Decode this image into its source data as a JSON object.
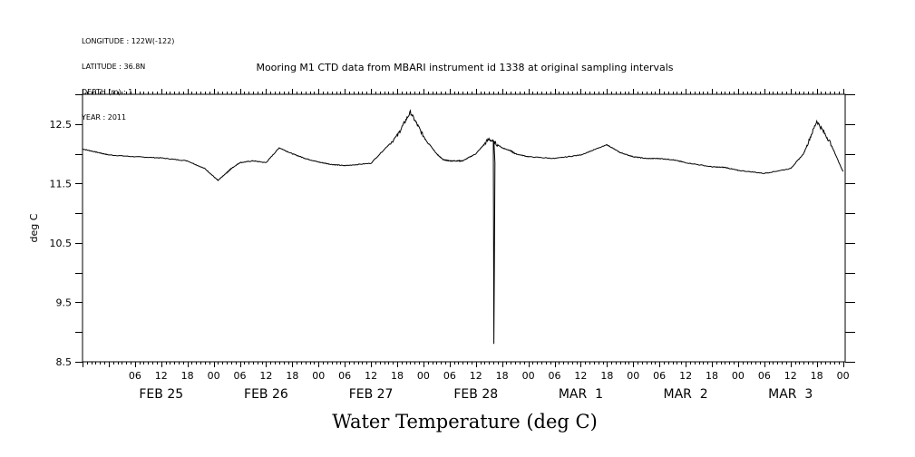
{
  "meta_lines": [
    "LONGITUDE : 122W(-122)",
    "LATITUDE : 36.8N",
    "DEPTH (m) : 1",
    "YEAR : 2011"
  ],
  "caption": "Water Temperature (deg C)",
  "colors": {
    "line": "#000000",
    "background": "#ffffff"
  },
  "chart_data": {
    "type": "line",
    "title": "Mooring M1 CTD data from MBARI instrument id 1338 at original sampling intervals",
    "xlabel": "",
    "ylabel": "deg C",
    "ylim": [
      8.5,
      13.0
    ],
    "xlim": [
      "2011-02-24T18:00",
      "2011-03-04T00:30"
    ],
    "y_ticks": [
      8.5,
      9.5,
      10.5,
      11.5,
      12.5
    ],
    "y_tick_labels": [
      "8.5",
      "9.5",
      "10.5",
      "11.5",
      "12.5"
    ],
    "hour_tick_labels": [
      "06",
      "12",
      "18",
      "00",
      "06",
      "12",
      "18",
      "00",
      "06",
      "12",
      "18",
      "00",
      "06",
      "12",
      "18",
      "00",
      "06",
      "12",
      "18",
      "00",
      "06",
      "12",
      "18",
      "00",
      "06",
      "12",
      "18",
      "00",
      "06",
      "12",
      "18",
      "00"
    ],
    "day_labels": [
      "FEB 25",
      "FEB 26",
      "FEB 27",
      "FEB 28",
      "MAR  1",
      "MAR  2",
      "MAR  3"
    ],
    "grid": false,
    "series": [
      {
        "x": [
          "2011-02-24T18:00",
          "2011-02-24T21:00",
          "2011-02-25T00:00",
          "2011-02-25T06:00",
          "2011-02-25T12:00",
          "2011-02-25T18:00",
          "2011-02-25T22:00",
          "2011-02-26T01:00",
          "2011-02-26T03:00",
          "2011-02-26T04:00",
          "2011-02-26T06:00",
          "2011-02-26T09:00",
          "2011-02-26T12:00",
          "2011-02-26T15:00",
          "2011-02-26T18:00",
          "2011-02-26T21:00",
          "2011-02-27T00:00",
          "2011-02-27T03:00",
          "2011-02-27T06:00",
          "2011-02-27T12:00",
          "2011-02-27T18:00",
          "2011-02-27T21:00",
          "2011-02-28T00:00",
          "2011-02-28T03:00",
          "2011-02-28T04:30",
          "2011-02-28T06:00",
          "2011-02-28T07:30",
          "2011-02-28T09:00",
          "2011-02-28T12:00",
          "2011-02-28T15:00",
          "2011-02-28T18:00",
          "2011-02-28T20:00",
          "2011-02-28T21:00",
          "2011-03-01T00:00",
          "2011-03-01T06:00",
          "2011-03-01T12:00",
          "2011-03-01T18:00",
          "2011-03-01T21:00",
          "2011-03-02T00:00",
          "2011-03-02T03:00",
          "2011-03-02T06:00",
          "2011-03-02T09:00",
          "2011-03-02T12:00",
          "2011-03-02T18:00",
          "2011-03-02T21:00",
          "2011-03-03T00:00",
          "2011-03-03T06:00",
          "2011-03-03T12:00",
          "2011-03-03T15:00",
          "2011-03-03T18:00",
          "2011-03-03T21:00",
          "2011-03-04T00:00"
        ],
        "values": [
          12.08,
          12.03,
          11.98,
          11.95,
          11.93,
          11.88,
          11.75,
          11.55,
          11.68,
          11.75,
          11.85,
          11.88,
          11.85,
          12.1,
          12.0,
          11.92,
          11.86,
          11.82,
          11.8,
          11.84,
          12.3,
          12.7,
          12.3,
          12.0,
          11.9,
          11.88,
          11.88,
          11.88,
          12.0,
          12.25,
          12.1,
          12.05,
          12.0,
          11.95,
          11.92,
          11.98,
          12.15,
          12.02,
          11.95,
          11.92,
          11.92,
          11.9,
          11.85,
          11.78,
          11.77,
          11.72,
          11.67,
          11.75,
          12.0,
          12.55,
          12.2,
          11.7
        ]
      }
    ],
    "annotations": [
      "sharp drop to about 8.8 on FEB 28 near 16h, recovering to about 10.2"
    ]
  }
}
